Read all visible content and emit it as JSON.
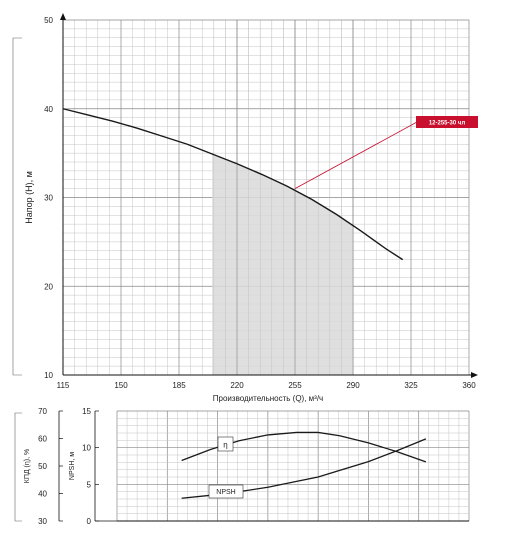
{
  "chart_data": [
    {
      "type": "line",
      "title": "",
      "xlabel": "Производительность (Q), м³/ч",
      "ylabel": "Напор (H), м",
      "xlim": [
        115,
        360
      ],
      "ylim": [
        10,
        50
      ],
      "x_ticks": [
        "115",
        "150",
        "185",
        "220",
        "255",
        "290",
        "325",
        "360"
      ],
      "y_ticks": [
        "10",
        "20",
        "30",
        "40",
        "50"
      ],
      "grid": true,
      "series": [
        {
          "name": "12-255-30 чл",
          "x": [
            115,
            130,
            145,
            160,
            175,
            190,
            205,
            220,
            235,
            250,
            265,
            280,
            295,
            310,
            320
          ],
          "y": [
            40.0,
            39.3,
            38.6,
            37.8,
            36.9,
            36.0,
            34.9,
            33.8,
            32.6,
            31.3,
            29.8,
            28.1,
            26.2,
            24.2,
            23.0
          ],
          "color": "#1a1a1a"
        }
      ],
      "operating_range": {
        "x_min": 205,
        "x_max": 290,
        "color": "#d9d9d9"
      },
      "callout": {
        "label": "12-255-30 чл",
        "x": 255,
        "y": 31.0,
        "color": "#c8102e"
      }
    },
    {
      "type": "line",
      "title": "",
      "xlabel": "",
      "y_axes": [
        {
          "label": "КПД (η), %",
          "ylim": [
            30,
            70
          ],
          "ticks": [
            "30",
            "40",
            "50",
            "60",
            "70"
          ]
        },
        {
          "label": "NPSH, м",
          "ylim": [
            0,
            15
          ],
          "ticks": [
            "0",
            "5",
            "10",
            "15"
          ]
        }
      ],
      "xlim": [
        115,
        360
      ],
      "grid": true,
      "series": [
        {
          "name": "η",
          "axis": "КПД (η), %",
          "x": [
            160,
            180,
            200,
            220,
            240,
            255,
            270,
            290,
            310,
            330
          ],
          "y": [
            52.0,
            56.0,
            59.2,
            61.3,
            62.2,
            62.2,
            61.0,
            58.4,
            55.2,
            51.5
          ],
          "color": "#1a1a1a"
        },
        {
          "name": "NPSH",
          "axis": "NPSH, м",
          "x": [
            160,
            180,
            200,
            220,
            240,
            255,
            270,
            290,
            310,
            330
          ],
          "y": [
            3.1,
            3.5,
            4.0,
            4.6,
            5.4,
            6.0,
            6.9,
            8.1,
            9.6,
            11.2
          ],
          "color": "#1a1a1a"
        }
      ]
    }
  ]
}
